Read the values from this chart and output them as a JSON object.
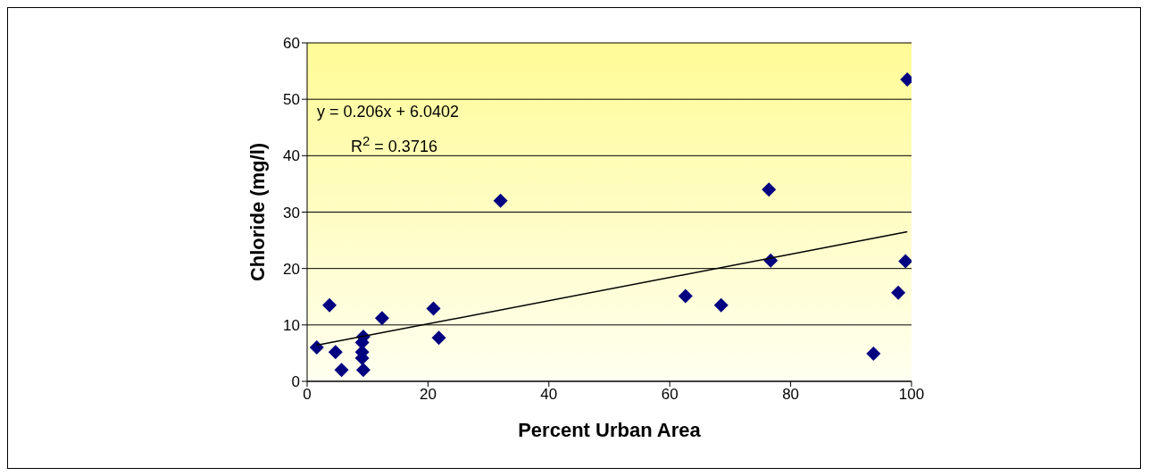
{
  "chart_data": {
    "type": "scatter",
    "xlabel": "Percent Urban Area",
    "ylabel": "Chloride (mg/l)",
    "xlim": [
      0,
      100
    ],
    "xticks": [
      0,
      20,
      40,
      60,
      80,
      100
    ],
    "ylim": [
      0,
      60
    ],
    "yticks": [
      0,
      10,
      20,
      30,
      40,
      50,
      60
    ],
    "grid": "y",
    "legend": false,
    "marker": "diamond",
    "annotations": [
      "y = 0.206x + 6.0402",
      "R$^{2}$ = 0.3716"
    ],
    "series": [
      {
        "type": "scatter",
        "color": "#000080",
        "x": [
          1.6,
          3.7,
          4.7,
          5.7,
          9.3,
          9.1,
          9.1,
          9.1,
          9.3,
          12.4,
          20.9,
          21.8,
          32.0,
          62.6,
          68.5,
          76.4,
          76.7,
          93.7,
          97.8,
          99.0,
          99.3
        ],
        "values": [
          6.0,
          13.5,
          5.2,
          2.0,
          7.9,
          6.9,
          5.2,
          4.1,
          2.0,
          11.2,
          12.9,
          7.7,
          32.0,
          15.1,
          13.5,
          34.0,
          21.4,
          4.9,
          15.7,
          21.3,
          53.5
        ]
      },
      {
        "type": "line",
        "color": "#000000",
        "marker": "none",
        "x": [
          1.6,
          99.3
        ],
        "values": [
          6.4,
          26.5
        ]
      }
    ]
  }
}
